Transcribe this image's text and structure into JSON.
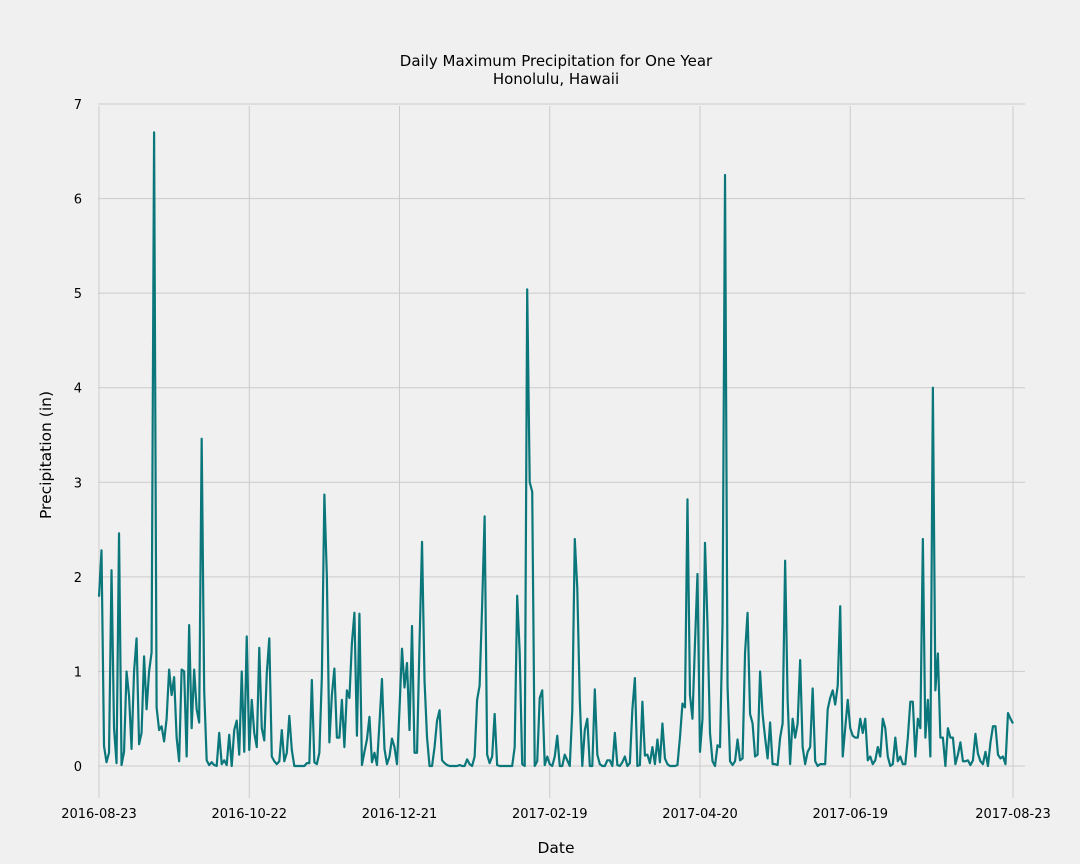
{
  "chart_data": {
    "type": "line",
    "title": "Daily Maximum Precipitation for One Year\nHonolulu, Hawaii",
    "title_lines": [
      "Daily Maximum Precipitation for One Year",
      "Honolulu, Hawaii"
    ],
    "xlabel": "Date",
    "ylabel": "Precipitation (in)",
    "xlim": [
      "2016-08-23",
      "2017-08-23"
    ],
    "ylim": [
      -0.35,
      7
    ],
    "x_ticks": [
      "2016-08-23",
      "2016-10-22",
      "2016-12-21",
      "2017-02-19",
      "2017-04-20",
      "2017-06-19",
      "2017-08-23"
    ],
    "y_ticks": [
      0,
      1,
      2,
      3,
      4,
      5,
      6,
      7
    ],
    "grid": true,
    "line_color": "#0b777b",
    "background_color": "#f0f0f0",
    "series": [
      {
        "x": [
          "2016-08-23",
          "2016-08-24",
          "2016-08-25",
          "2016-08-26",
          "2016-08-27",
          "2016-08-28",
          "2016-08-29",
          "2016-08-30",
          "2016-08-31",
          "2016-09-01",
          "2016-09-02",
          "2016-09-03",
          "2016-09-04",
          "2016-09-05",
          "2016-09-06",
          "2016-09-07",
          "2016-09-08",
          "2016-09-09",
          "2016-09-10",
          "2016-09-11",
          "2016-09-12",
          "2016-09-13",
          "2016-09-14",
          "2016-09-15",
          "2016-09-16",
          "2016-09-17",
          "2016-09-18",
          "2016-09-19",
          "2016-09-20",
          "2016-09-21",
          "2016-09-22",
          "2016-09-23",
          "2016-09-24",
          "2016-09-25",
          "2016-09-26",
          "2016-09-27",
          "2016-09-28",
          "2016-09-29",
          "2016-09-30",
          "2016-10-01",
          "2016-10-02",
          "2016-10-03",
          "2016-10-04",
          "2016-10-05",
          "2016-10-06",
          "2016-10-07",
          "2016-10-08",
          "2016-10-09",
          "2016-10-10",
          "2016-10-11",
          "2016-10-12",
          "2016-10-13",
          "2016-10-14",
          "2016-10-15",
          "2016-10-16",
          "2016-10-17",
          "2016-10-18",
          "2016-10-19",
          "2016-10-20",
          "2016-10-21",
          "2016-10-22",
          "2016-10-23",
          "2016-10-24",
          "2016-10-25",
          "2016-10-26",
          "2016-10-27",
          "2016-10-28",
          "2016-10-29",
          "2016-10-30",
          "2016-10-31",
          "2016-11-01",
          "2016-11-02",
          "2016-11-03",
          "2016-11-04",
          "2016-11-05",
          "2016-11-06",
          "2016-11-07",
          "2016-11-08",
          "2016-11-09",
          "2016-11-10",
          "2016-11-11",
          "2016-11-12",
          "2016-11-13",
          "2016-11-14",
          "2016-11-15",
          "2016-11-16",
          "2016-11-17",
          "2016-11-18",
          "2016-11-19",
          "2016-11-20",
          "2016-11-21",
          "2016-11-22",
          "2016-11-23",
          "2016-11-24",
          "2016-11-25",
          "2016-11-26",
          "2016-11-27",
          "2016-11-28",
          "2016-11-29",
          "2016-11-30",
          "2016-12-01",
          "2016-12-02",
          "2016-12-03",
          "2016-12-04",
          "2016-12-05",
          "2016-12-06",
          "2016-12-07",
          "2016-12-08",
          "2016-12-09",
          "2016-12-10",
          "2016-12-11",
          "2016-12-12",
          "2016-12-13",
          "2016-12-14",
          "2016-12-15",
          "2016-12-16",
          "2016-12-17",
          "2016-12-18",
          "2016-12-19",
          "2016-12-20",
          "2016-12-21",
          "2016-12-22",
          "2016-12-23",
          "2016-12-24",
          "2016-12-25",
          "2016-12-26",
          "2016-12-27",
          "2016-12-28",
          "2016-12-29",
          "2016-12-30",
          "2016-12-31",
          "2017-01-01",
          "2017-01-02",
          "2017-01-03",
          "2017-01-04",
          "2017-01-05",
          "2017-01-06",
          "2017-01-07",
          "2017-01-08",
          "2017-01-09",
          "2017-01-10",
          "2017-01-11",
          "2017-01-12",
          "2017-01-13",
          "2017-01-14",
          "2017-01-15",
          "2017-01-16",
          "2017-01-17",
          "2017-01-18",
          "2017-01-19",
          "2017-01-20",
          "2017-01-21",
          "2017-01-22",
          "2017-01-23",
          "2017-01-24",
          "2017-01-25",
          "2017-01-26",
          "2017-01-27",
          "2017-01-28",
          "2017-01-29",
          "2017-01-30",
          "2017-01-31",
          "2017-02-01",
          "2017-02-02",
          "2017-02-03",
          "2017-02-04",
          "2017-02-05",
          "2017-02-06",
          "2017-02-07",
          "2017-02-08",
          "2017-02-09",
          "2017-02-10",
          "2017-02-11",
          "2017-02-12",
          "2017-02-13",
          "2017-02-14",
          "2017-02-15",
          "2017-02-16",
          "2017-02-17",
          "2017-02-18",
          "2017-02-19",
          "2017-02-20",
          "2017-02-21",
          "2017-02-22",
          "2017-02-23",
          "2017-02-24",
          "2017-02-25",
          "2017-02-26",
          "2017-02-27",
          "2017-02-28",
          "2017-03-01",
          "2017-03-02",
          "2017-03-03",
          "2017-03-04",
          "2017-03-05",
          "2017-03-06",
          "2017-03-07",
          "2017-03-08",
          "2017-03-09",
          "2017-03-10",
          "2017-03-11",
          "2017-03-12",
          "2017-03-13",
          "2017-03-14",
          "2017-03-15",
          "2017-03-16",
          "2017-03-17",
          "2017-03-18",
          "2017-03-19",
          "2017-03-20",
          "2017-03-21",
          "2017-03-22",
          "2017-03-23",
          "2017-03-24",
          "2017-03-25",
          "2017-03-26",
          "2017-03-27",
          "2017-03-28",
          "2017-03-29",
          "2017-03-30",
          "2017-03-31",
          "2017-04-01",
          "2017-04-02",
          "2017-04-03",
          "2017-04-04",
          "2017-04-05",
          "2017-04-06",
          "2017-04-07",
          "2017-04-08",
          "2017-04-09",
          "2017-04-10",
          "2017-04-11",
          "2017-04-12",
          "2017-04-13",
          "2017-04-14",
          "2017-04-15",
          "2017-04-16",
          "2017-04-17",
          "2017-04-18",
          "2017-04-19",
          "2017-04-20",
          "2017-04-21",
          "2017-04-22",
          "2017-04-23",
          "2017-04-24",
          "2017-04-25",
          "2017-04-26",
          "2017-04-27",
          "2017-04-28",
          "2017-04-29",
          "2017-04-30",
          "2017-05-01",
          "2017-05-02",
          "2017-05-03",
          "2017-05-04",
          "2017-05-05",
          "2017-05-06",
          "2017-05-07",
          "2017-05-08",
          "2017-05-09",
          "2017-05-10",
          "2017-05-11",
          "2017-05-12",
          "2017-05-13",
          "2017-05-14",
          "2017-05-15",
          "2017-05-16",
          "2017-05-17",
          "2017-05-18",
          "2017-05-19",
          "2017-05-20",
          "2017-05-21",
          "2017-05-22",
          "2017-05-23",
          "2017-05-24",
          "2017-05-25",
          "2017-05-26",
          "2017-05-27",
          "2017-05-28",
          "2017-05-29",
          "2017-05-30",
          "2017-05-31",
          "2017-06-01",
          "2017-06-02",
          "2017-06-03",
          "2017-06-04",
          "2017-06-05",
          "2017-06-06",
          "2017-06-07",
          "2017-06-08",
          "2017-06-09",
          "2017-06-10",
          "2017-06-11",
          "2017-06-12",
          "2017-06-13",
          "2017-06-14",
          "2017-06-15",
          "2017-06-16",
          "2017-06-17",
          "2017-06-18",
          "2017-06-19",
          "2017-06-20",
          "2017-06-21",
          "2017-06-22",
          "2017-06-23",
          "2017-06-24",
          "2017-06-25",
          "2017-06-26",
          "2017-06-27",
          "2017-06-28",
          "2017-06-29",
          "2017-06-30",
          "2017-07-01",
          "2017-07-02",
          "2017-07-03",
          "2017-07-04",
          "2017-07-05",
          "2017-07-06",
          "2017-07-07",
          "2017-07-08",
          "2017-07-09",
          "2017-07-10",
          "2017-07-11",
          "2017-07-12",
          "2017-07-13",
          "2017-07-14",
          "2017-07-15",
          "2017-07-16",
          "2017-07-17",
          "2017-07-18",
          "2017-07-19",
          "2017-07-20",
          "2017-07-21",
          "2017-07-22",
          "2017-07-23",
          "2017-07-24",
          "2017-07-25",
          "2017-07-26",
          "2017-07-27",
          "2017-07-28",
          "2017-07-29",
          "2017-07-30",
          "2017-07-31",
          "2017-08-01",
          "2017-08-02",
          "2017-08-03",
          "2017-08-04",
          "2017-08-05",
          "2017-08-06",
          "2017-08-07",
          "2017-08-08",
          "2017-08-09",
          "2017-08-10",
          "2017-08-11",
          "2017-08-12",
          "2017-08-13",
          "2017-08-14",
          "2017-08-15",
          "2017-08-16",
          "2017-08-17",
          "2017-08-18",
          "2017-08-19",
          "2017-08-20",
          "2017-08-21",
          "2017-08-22",
          "2017-08-23"
        ],
        "values": [
          1.79,
          2.28,
          0.21,
          0.04,
          0.14,
          2.07,
          0.4,
          0.03,
          2.46,
          0.01,
          0.15,
          1,
          0.74,
          0.18,
          1,
          1.35,
          0.23,
          0.35,
          1.16,
          0.6,
          1,
          1.2,
          6.7,
          0.62,
          0.38,
          0.42,
          0.26,
          0.5,
          1.02,
          0.75,
          0.94,
          0.3,
          0.05,
          1.02,
          1,
          0.1,
          1.49,
          0.4,
          1.02,
          0.6,
          0.46,
          3.46,
          0.8,
          0.06,
          0.01,
          0.04,
          0.01,
          0,
          0.35,
          0.02,
          0.06,
          0.01,
          0.33,
          0,
          0.38,
          0.48,
          0.12,
          1,
          0.15,
          1.37,
          0.17,
          0.7,
          0.35,
          0.2,
          1.25,
          0.4,
          0.27,
          0.98,
          1.35,
          0.1,
          0.05,
          0.02,
          0.05,
          0.38,
          0.05,
          0.14,
          0.53,
          0.17,
          0,
          0,
          0,
          0,
          0,
          0.03,
          0.03,
          0.91,
          0.04,
          0.02,
          0.14,
          0.95,
          2.87,
          2,
          0.25,
          0.75,
          1.03,
          0.3,
          0.3,
          0.7,
          0.2,
          0.8,
          0.72,
          1.3,
          1.62,
          0.32,
          1.61,
          0.01,
          0.15,
          0.28,
          0.52,
          0.04,
          0.14,
          0.01,
          0.45,
          0.92,
          0.18,
          0.02,
          0.1,
          0.29,
          0.2,
          0.02,
          0.6,
          1.24,
          0.83,
          1.09,
          0.38,
          1.48,
          0.14,
          0.14,
          1.3,
          2.37,
          0.9,
          0.3,
          0,
          0,
          0.2,
          0.48,
          0.59,
          0.06,
          0.03,
          0.01,
          0,
          0,
          0,
          0,
          0.01,
          0,
          0,
          0.07,
          0.02,
          0,
          0.1,
          0.7,
          0.85,
          1.7,
          2.64,
          0.12,
          0.03,
          0.1,
          0.55,
          0.01,
          0,
          0,
          0,
          0,
          0,
          0,
          0.2,
          1.8,
          1.2,
          0.02,
          0,
          5.04,
          3,
          2.9,
          0,
          0.05,
          0.72,
          0.8,
          0.01,
          0.1,
          0.02,
          0,
          0.1,
          0.32,
          0,
          0,
          0.12,
          0.06,
          0,
          0.58,
          2.4,
          1.88,
          0.7,
          0,
          0.38,
          0.5,
          0,
          0,
          0.81,
          0.12,
          0.02,
          0,
          0,
          0.06,
          0.06,
          0,
          0.35,
          0.01,
          0,
          0.04,
          0.1,
          0,
          0.03,
          0.6,
          0.93,
          0,
          0.01,
          0.68,
          0.11,
          0.12,
          0.03,
          0.2,
          0.02,
          0.28,
          0.04,
          0.45,
          0.08,
          0.02,
          0,
          0,
          0,
          0.01,
          0.3,
          0.66,
          0.62,
          2.82,
          0.75,
          0.5,
          1.3,
          2.03,
          0.15,
          0.5,
          2.36,
          1.5,
          0.35,
          0.05,
          0,
          0.22,
          0.2,
          1.5,
          6.25,
          0.85,
          0.05,
          0.01,
          0.05,
          0.28,
          0.06,
          0.08,
          1.2,
          1.62,
          0.55,
          0.45,
          0.1,
          0.12,
          1,
          0.55,
          0.3,
          0.08,
          0.46,
          0.02,
          0.02,
          0.01,
          0.3,
          0.45,
          2.17,
          0.7,
          0.02,
          0.5,
          0.3,
          0.45,
          1.12,
          0.2,
          0.02,
          0.15,
          0.2,
          0.82,
          0.05,
          0,
          0.02,
          0.02,
          0.02,
          0.6,
          0.72,
          0.8,
          0.65,
          0.85,
          1.69,
          0.1,
          0.4,
          0.7,
          0.4,
          0.32,
          0.3,
          0.3,
          0.5,
          0.35,
          0.5,
          0.06,
          0.1,
          0.02,
          0.06,
          0.2,
          0.1,
          0.5,
          0.4,
          0.1,
          0,
          0.02,
          0.3,
          0.05,
          0.1,
          0.02,
          0.02,
          0.3,
          0.68,
          0.68,
          0.1,
          0.5,
          0.4,
          2.4,
          0.3,
          0.7,
          0.1,
          4,
          0.8,
          1.19,
          0.3,
          0.3,
          0,
          0.4,
          0.3,
          0.3,
          0.02,
          0.12,
          0.25,
          0.05,
          0.05,
          0.06,
          0.01,
          0.06,
          0.34,
          0.13,
          0.05,
          0.02,
          0.15,
          0,
          0.25,
          0.42,
          0.42,
          0.12,
          0.08,
          0.1,
          0.02,
          0.56,
          0.5,
          0.45
        ]
      }
    ]
  }
}
